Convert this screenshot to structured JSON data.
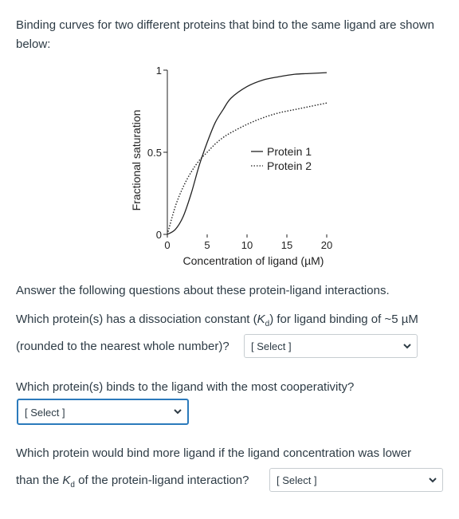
{
  "intro": "Binding curves for two different proteins that bind to the same ligand are shown below:",
  "question_intro": "Answer the following questions about these protein-ligand interactions.",
  "q1": {
    "line1_pre": "Which protein(s) has a dissociation constant (",
    "k_symbol": "K",
    "k_sub": "d",
    "line1_post": ") for ligand binding of ~5 µM",
    "line2": "(rounded to the nearest whole number)?",
    "select_value": "[ Select ]"
  },
  "q2": {
    "text": "Which protein(s) binds to the ligand with the most cooperativity?",
    "select_value": "[ Select ]"
  },
  "q3": {
    "line1": "Which protein would bind more ligand if the ligand concentration was lower",
    "line2_pre": "than the ",
    "k_symbol": "K",
    "k_sub": "d",
    "line2_post": " of the protein-ligand interaction?",
    "select_value": "[ Select ]"
  },
  "chart_data": {
    "type": "line",
    "title": "",
    "xlabel": "Concentration of ligand (µM)",
    "ylabel": "Fractional saturation",
    "xlim": [
      0,
      20
    ],
    "ylim": [
      0,
      1
    ],
    "x_ticks": [
      "0",
      "5",
      "10",
      "15",
      "20"
    ],
    "y_ticks": [
      "0",
      "0.5",
      "1"
    ],
    "legend_position": "center-right",
    "series": [
      {
        "name": "Protein 1",
        "style": "solid",
        "x": [
          0,
          1,
          2,
          3,
          4,
          5,
          6,
          7,
          8,
          10,
          12,
          14,
          16,
          18,
          20
        ],
        "y": [
          0.0,
          0.03,
          0.11,
          0.25,
          0.42,
          0.56,
          0.68,
          0.76,
          0.83,
          0.9,
          0.94,
          0.96,
          0.975,
          0.98,
          0.985
        ]
      },
      {
        "name": "Protein 2",
        "style": "dotted",
        "x": [
          0,
          1,
          2,
          3,
          4,
          5,
          6,
          7,
          8,
          10,
          12,
          14,
          16,
          18,
          20
        ],
        "y": [
          0.0,
          0.17,
          0.29,
          0.38,
          0.45,
          0.5,
          0.55,
          0.59,
          0.62,
          0.67,
          0.71,
          0.74,
          0.76,
          0.78,
          0.8
        ]
      }
    ]
  },
  "colors": {
    "text": "#2d3b45",
    "select_border": "#c7cdd1",
    "focus_border": "#2b7abc"
  }
}
